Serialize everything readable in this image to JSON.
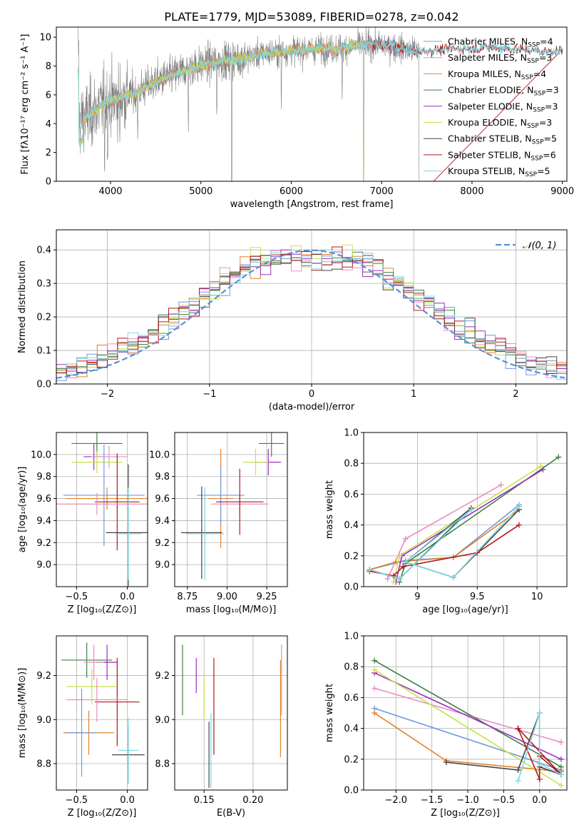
{
  "figure_title": "PLATE=1779, MJD=53089, FIBERID=0278, z=0.042",
  "palette": {
    "chabrier_miles": "#6f9bd8",
    "salpeter_miles": "#e88dc3",
    "kroupa_miles": "#e0822a",
    "chabrier_elodie": "#3d7f44",
    "salpeter_elodie": "#9b2fbf",
    "kroupa_elodie": "#c8e04a",
    "chabrier_stelib": "#444444",
    "salpeter_stelib": "#b01818",
    "kroupa_stelib": "#7fd6e0",
    "data": "#808080",
    "normal": "#5b8fd8"
  },
  "chart_data": [
    {
      "id": "spectrum",
      "type": "line",
      "xlabel": "wavelength [Angstrom, rest frame]",
      "ylabel": "Flux [fλ10⁻¹⁷ erg cm⁻² s⁻¹ A⁻¹]",
      "xlim": [
        3400,
        9050
      ],
      "ylim": [
        0,
        10.7
      ],
      "xticks": [
        4000,
        5000,
        6000,
        7000,
        8000,
        9000
      ],
      "yticks": [
        0,
        2,
        4,
        6,
        8,
        10
      ],
      "grid": false,
      "legend_position": "top-right",
      "legend": [
        {
          "label": "Chabrier MILES, N",
          "sub": "SSP",
          "tail": "=4",
          "color_key": "chabrier_miles"
        },
        {
          "label": "Salpeter MILES, N",
          "sub": "SSP",
          "tail": "=3",
          "color_key": "salpeter_miles"
        },
        {
          "label": "Kroupa MILES, N",
          "sub": "SSP",
          "tail": "=4",
          "color_key": "kroupa_miles"
        },
        {
          "label": "Chabrier ELODIE, N",
          "sub": "SSP",
          "tail": "=3",
          "color_key": "chabrier_elodie"
        },
        {
          "label": "Salpeter ELODIE, N",
          "sub": "SSP",
          "tail": "=3",
          "color_key": "salpeter_elodie"
        },
        {
          "label": "Kroupa ELODIE, N",
          "sub": "SSP",
          "tail": "=3",
          "color_key": "kroupa_elodie"
        },
        {
          "label": "Chabrier STELIB, N",
          "sub": "SSP",
          "tail": "=5",
          "color_key": "chabrier_stelib"
        },
        {
          "label": "Salpeter STELIB, N",
          "sub": "SSP",
          "tail": "=6",
          "color_key": "salpeter_stelib"
        },
        {
          "label": "Kroupa STELIB, N",
          "sub": "SSP",
          "tail": "=5",
          "color_key": "kroupa_stelib"
        }
      ],
      "continuum": [
        [
          3650,
          4.2
        ],
        [
          3800,
          4.8
        ],
        [
          3950,
          5.5
        ],
        [
          4100,
          5.8
        ],
        [
          4300,
          6.2
        ],
        [
          4500,
          6.9
        ],
        [
          4700,
          7.4
        ],
        [
          4900,
          7.9
        ],
        [
          5100,
          8.2
        ],
        [
          5300,
          8.4
        ],
        [
          5500,
          8.6
        ],
        [
          5700,
          8.9
        ],
        [
          5900,
          9.0
        ],
        [
          6100,
          9.1
        ],
        [
          6300,
          9.2
        ],
        [
          6500,
          9.2
        ],
        [
          6700,
          9.4
        ],
        [
          6900,
          9.5
        ],
        [
          7100,
          9.4
        ],
        [
          7300,
          9.1
        ],
        [
          7420,
          9.0
        ],
        [
          7600,
          9.1
        ],
        [
          7800,
          9.2
        ],
        [
          8000,
          9.2
        ],
        [
          8200,
          9.3
        ],
        [
          8400,
          9.2
        ],
        [
          8600,
          9.1
        ],
        [
          8800,
          9.0
        ],
        [
          9000,
          9.1
        ]
      ],
      "data_range": [
        3640,
        7420
      ],
      "model_ranges": [
        {
          "key": "chabrier_miles",
          "range": [
            3640,
            7420
          ]
        },
        {
          "key": "salpeter_miles",
          "range": [
            3640,
            7420
          ]
        },
        {
          "key": "kroupa_miles",
          "range": [
            3640,
            7420
          ]
        },
        {
          "key": "kroupa_elodie",
          "range": [
            3640,
            6800
          ]
        },
        {
          "key": "salpeter_stelib",
          "range": [
            6900,
            9000
          ]
        },
        {
          "key": "kroupa_stelib",
          "range": [
            3640,
            9000
          ]
        }
      ]
    },
    {
      "id": "residuals",
      "type": "histogram",
      "xlabel": "(data-model)/error",
      "ylabel": "Normed distribution",
      "xlim": [
        -2.5,
        2.5
      ],
      "ylim": [
        0,
        0.46
      ],
      "xticks": [
        -2,
        -1,
        0,
        1,
        2
      ],
      "yticks": [
        0.0,
        0.1,
        0.2,
        0.3,
        0.4
      ],
      "grid": true,
      "legend_position": "top-right",
      "legend": [
        {
          "label": "𝒩(0, 1)",
          "color_key": "normal",
          "style": "dashed"
        }
      ],
      "bin_width": 0.1,
      "normal_curve": {
        "mean": 0,
        "sigma": 1
      }
    },
    {
      "id": "age_vs_Z",
      "type": "errorbar",
      "xlabel": "Z [log₁₀(Z/Z⊙)]",
      "ylabel": "age  [log₁₀(age/yr)]",
      "xlim": [
        -0.7,
        0.2
      ],
      "ylim": [
        8.8,
        10.2
      ],
      "xticks": [
        -0.5,
        0.0
      ],
      "xtick_labels": [
        "−0.5",
        "0.0"
      ],
      "yticks": [
        9.0,
        9.2,
        9.4,
        9.6,
        9.8,
        10.0
      ],
      "grid": true,
      "points": [
        {
          "key": "chabrier_elodie",
          "x": -0.3,
          "xerr": 0.25,
          "y": 10.1,
          "yerr": 0.12
        },
        {
          "key": "salpeter_elodie",
          "x": -0.33,
          "xerr": 0.1,
          "y": 9.98,
          "yerr": 0.12
        },
        {
          "key": "salpeter_miles",
          "x": -0.18,
          "xerr": 0.18,
          "y": 9.98,
          "yerr": 0.1
        },
        {
          "key": "kroupa_elodie",
          "x": -0.3,
          "xerr": 0.25,
          "y": 9.93,
          "yerr": 0.1
        },
        {
          "key": "kroupa_miles",
          "x": -0.2,
          "xerr": 0.4,
          "y": 9.6,
          "yerr": 0.1
        },
        {
          "key": "chabrier_miles",
          "x": -0.23,
          "xerr": 0.4,
          "y": 9.63,
          "yerr": 0.46
        },
        {
          "key": "salpeter_stelib",
          "x": -0.1,
          "xerr": 0.22,
          "y": 9.57,
          "yerr": 0.44
        },
        {
          "key": "chabrier_stelib",
          "x": 0.01,
          "xerr": 0.22,
          "y": 9.29,
          "yerr": 0.62
        },
        {
          "key": "kroupa_stelib",
          "x": 0.01,
          "xerr": 0.13,
          "y": 9.28,
          "yerr": 0.42
        },
        {
          "key": "salpeter_miles",
          "x": -0.3,
          "xerr": 0.5,
          "y": 9.55,
          "yerr": 0.1
        }
      ]
    },
    {
      "id": "age_vs_mass",
      "type": "errorbar",
      "xlabel": "mass [log₁₀(M/M⊙)]",
      "ylabel": "",
      "xlim": [
        8.67,
        9.38
      ],
      "ylim": [
        8.8,
        10.2
      ],
      "xticks": [
        8.75,
        9.0,
        9.25
      ],
      "xtick_labels": [
        "8.75",
        "9.00",
        "9.25"
      ],
      "yticks": [
        9.0,
        9.2,
        9.4,
        9.6,
        9.8,
        10.0
      ],
      "grid": true,
      "points": [
        {
          "key": "chabrier_elodie",
          "x": 9.28,
          "xerr": 0.08,
          "y": 10.1,
          "yerr": 0.12
        },
        {
          "key": "salpeter_elodie",
          "x": 9.26,
          "xerr": 0.08,
          "y": 9.93,
          "yerr": 0.12
        },
        {
          "key": "kroupa_elodie",
          "x": 9.18,
          "xerr": 0.08,
          "y": 9.93,
          "yerr": 0.12
        },
        {
          "key": "kroupa_miles",
          "x": 8.96,
          "xerr": 0.08,
          "y": 9.6,
          "yerr": 0.45
        },
        {
          "key": "chabrier_miles",
          "x": 8.96,
          "xerr": 0.15,
          "y": 9.63,
          "yerr": 0.26
        },
        {
          "key": "salpeter_miles",
          "x": 9.08,
          "xerr": 0.18,
          "y": 9.55,
          "yerr": 0.1
        },
        {
          "key": "salpeter_stelib",
          "x": 9.08,
          "xerr": 0.15,
          "y": 9.57,
          "yerr": 0.3
        },
        {
          "key": "chabrier_stelib",
          "x": 8.84,
          "xerr": 0.13,
          "y": 9.29,
          "yerr": 0.42
        },
        {
          "key": "kroupa_stelib",
          "x": 8.86,
          "xerr": 0.12,
          "y": 9.28,
          "yerr": 0.42
        }
      ]
    },
    {
      "id": "weight_vs_age",
      "type": "line",
      "xlabel": "age  [log₁₀(age/yr)]",
      "ylabel": "mass weight",
      "xlim": [
        8.55,
        10.25
      ],
      "ylim": [
        0,
        1.0
      ],
      "xticks": [
        9.0,
        9.5,
        10.0
      ],
      "yticks": [
        0.0,
        0.2,
        0.4,
        0.6,
        0.8,
        1.0
      ],
      "grid": true,
      "series": [
        {
          "key": "chabrier_miles",
          "x": [
            8.6,
            8.9,
            9.3,
            9.85
          ],
          "y": [
            0.11,
            0.17,
            0.19,
            0.53
          ]
        },
        {
          "key": "salpeter_miles",
          "x": [
            8.75,
            8.9,
            9.7
          ],
          "y": [
            0.05,
            0.31,
            0.66
          ]
        },
        {
          "key": "kroupa_miles",
          "x": [
            8.6,
            8.82,
            9.3,
            9.85
          ],
          "y": [
            0.11,
            0.16,
            0.19,
            0.5
          ]
        },
        {
          "key": "chabrier_elodie",
          "x": [
            8.85,
            8.9,
            10.18
          ],
          "y": [
            0.03,
            0.15,
            0.84
          ]
        },
        {
          "key": "salpeter_elodie",
          "x": [
            8.82,
            8.87,
            10.05
          ],
          "y": [
            0.03,
            0.2,
            0.76
          ]
        },
        {
          "key": "kroupa_elodie",
          "x": [
            8.8,
            8.85,
            10.03
          ],
          "y": [
            0.03,
            0.2,
            0.78
          ]
        },
        {
          "key": "chabrier_stelib",
          "x": [
            8.6,
            8.85,
            9.45,
            8.9,
            9.3,
            9.85
          ],
          "y": [
            0.11,
            0.05,
            0.51,
            0.16,
            0.06,
            0.5
          ]
        },
        {
          "key": "salpeter_stelib",
          "x": [
            8.6,
            8.8,
            8.88,
            9.5,
            9.85
          ],
          "y": [
            0.1,
            0.07,
            0.13,
            0.22,
            0.4
          ]
        },
        {
          "key": "kroupa_stelib",
          "x": [
            8.6,
            8.85,
            9.45,
            8.9,
            9.3,
            9.85
          ],
          "y": [
            0.11,
            0.05,
            0.5,
            0.16,
            0.06,
            0.52
          ]
        }
      ]
    },
    {
      "id": "mass_vs_Z",
      "type": "errorbar",
      "xlabel": "Z [log₁₀(Z/Z⊙)]",
      "ylabel": "mass [log₁₀(M/M⊙)]",
      "xlim": [
        -0.7,
        0.2
      ],
      "ylim": [
        8.68,
        9.38
      ],
      "xticks": [
        -0.5,
        0.0
      ],
      "xtick_labels": [
        "−0.5",
        "0.0"
      ],
      "yticks": [
        8.8,
        9.0,
        9.2
      ],
      "yticks_labels": [
        "8.8",
        "9.0",
        "9.2"
      ],
      "grid": true,
      "points": [
        {
          "key": "chabrier_elodie",
          "x": -0.4,
          "xerr": 0.25,
          "y": 9.27,
          "yerr": 0.08
        },
        {
          "key": "salpeter_elodie",
          "x": -0.2,
          "xerr": 0.1,
          "y": 9.26,
          "yerr": 0.08
        },
        {
          "key": "salpeter_miles",
          "x": -0.33,
          "xerr": 0.1,
          "y": 9.26,
          "yerr": 0.08
        },
        {
          "key": "kroupa_elodie",
          "x": -0.35,
          "xerr": 0.25,
          "y": 9.15,
          "yerr": 0.08
        },
        {
          "key": "salpeter_stelib",
          "x": -0.1,
          "xerr": 0.22,
          "y": 9.08,
          "yerr": 0.2
        },
        {
          "key": "salpeter_miles",
          "x": -0.3,
          "xerr": 0.3,
          "y": 9.09,
          "yerr": 0.1
        },
        {
          "key": "kroupa_miles",
          "x": -0.38,
          "xerr": 0.25,
          "y": 8.94,
          "yerr": 0.1
        },
        {
          "key": "chabrier_miles",
          "x": -0.45,
          "xerr": 0.15,
          "y": 8.94,
          "yerr": 0.2
        },
        {
          "key": "chabrier_stelib",
          "x": 0.01,
          "xerr": 0.16,
          "y": 8.84,
          "yerr": 0.13
        },
        {
          "key": "kroupa_stelib",
          "x": 0.01,
          "xerr": 0.1,
          "y": 8.86,
          "yerr": 0.15
        }
      ]
    },
    {
      "id": "mass_vs_ebv",
      "type": "errorbar",
      "xlabel": "E(B-V)",
      "ylabel": "",
      "xlim": [
        0.12,
        0.235
      ],
      "ylim": [
        8.68,
        9.38
      ],
      "xticks": [
        0.15,
        0.2
      ],
      "xtick_labels": [
        "0.15",
        "0.20"
      ],
      "yticks": [
        8.8,
        9.0,
        9.2
      ],
      "grid": true,
      "points": [
        {
          "key": "chabrier_elodie",
          "x": 0.128,
          "xerr": 0,
          "y": 9.18,
          "yerr": 0.16
        },
        {
          "key": "salpeter_elodie",
          "x": 0.142,
          "xerr": 0,
          "y": 9.2,
          "yerr": 0.08
        },
        {
          "key": "kroupa_elodie",
          "x": 0.15,
          "xerr": 0,
          "y": 9.1,
          "yerr": 0.1
        },
        {
          "key": "chabrier_stelib",
          "x": 0.155,
          "xerr": 0,
          "y": 8.84,
          "yerr": 0.15
        },
        {
          "key": "kroupa_stelib",
          "x": 0.157,
          "xerr": 0,
          "y": 8.86,
          "yerr": 0.17
        },
        {
          "key": "salpeter_stelib",
          "x": 0.16,
          "xerr": 0,
          "y": 9.06,
          "yerr": 0.22
        },
        {
          "key": "kroupa_miles",
          "x": 0.228,
          "xerr": 0,
          "y": 9.05,
          "yerr": 0.22
        },
        {
          "key": "salpeter_miles",
          "x": 0.229,
          "xerr": 0,
          "y": 9.18,
          "yerr": 0.16
        }
      ]
    },
    {
      "id": "weight_vs_Z",
      "type": "line",
      "xlabel": "Z [log₁₀(Z/Z⊙)]",
      "ylabel": "mass weight",
      "xlim": [
        -2.45,
        0.38
      ],
      "ylim": [
        0,
        1.0
      ],
      "xticks": [
        -2.0,
        -1.5,
        -1.0,
        -0.5,
        0.0
      ],
      "xtick_labels": [
        "−2.0",
        "−1.5",
        "−1.0",
        "−0.5",
        "0.0"
      ],
      "yticks": [
        0.0,
        0.2,
        0.4,
        0.6,
        0.8,
        1.0
      ],
      "grid": true,
      "series": [
        {
          "key": "chabrier_miles",
          "x": [
            -2.3,
            0.3
          ],
          "y": [
            0.53,
            0.13
          ]
        },
        {
          "key": "salpeter_miles",
          "x": [
            -2.3,
            0.3
          ],
          "y": [
            0.66,
            0.31
          ]
        },
        {
          "key": "kroupa_miles",
          "x": [
            -2.3,
            -1.3,
            0.3
          ],
          "y": [
            0.5,
            0.19,
            0.12
          ]
        },
        {
          "key": "chabrier_elodie",
          "x": [
            -2.3,
            0.3
          ],
          "y": [
            0.84,
            0.15
          ]
        },
        {
          "key": "salpeter_elodie",
          "x": [
            -2.3,
            0.3
          ],
          "y": [
            0.76,
            0.2
          ]
        },
        {
          "key": "kroupa_elodie",
          "x": [
            -2.3,
            0.3
          ],
          "y": [
            0.78,
            0.03
          ]
        },
        {
          "key": "chabrier_stelib",
          "x": [
            -1.3,
            -0.3,
            0.0,
            0.0,
            0.3
          ],
          "y": [
            0.18,
            0.13,
            0.5,
            0.15,
            0.1
          ]
        },
        {
          "key": "salpeter_stelib",
          "x": [
            -0.3,
            0.0,
            0.0,
            0.3,
            -0.3
          ],
          "y": [
            0.4,
            0.07,
            0.22,
            0.1,
            0.4
          ]
        },
        {
          "key": "kroupa_stelib",
          "x": [
            -0.3,
            0.0,
            0.0,
            0.3
          ],
          "y": [
            0.06,
            0.5,
            0.17,
            0.1
          ]
        }
      ]
    }
  ]
}
